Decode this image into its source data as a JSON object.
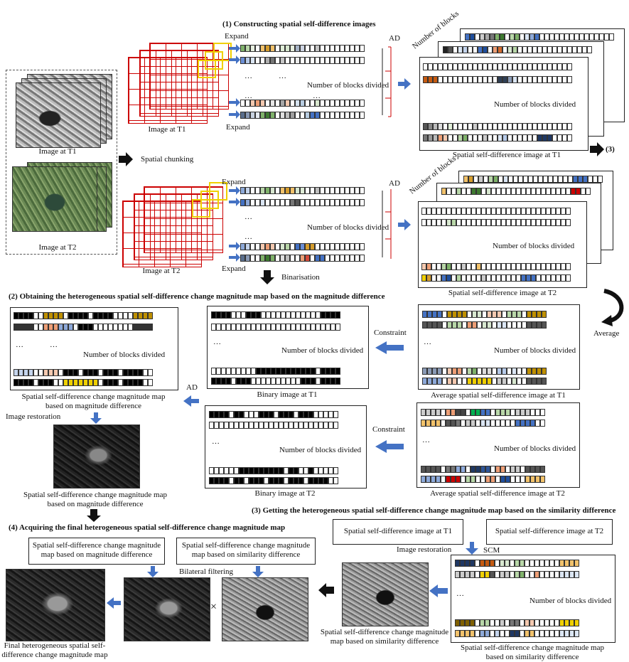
{
  "section1_title": "(1) Constructing spatial self-difference images",
  "section2_title": "(2) Obtaining the heterogeneous spatial self-difference  change magnitude map based on the magnitude difference",
  "section3_title": "(3) Getting the heterogeneous spatial self-difference change magnitude map based on the similarity difference",
  "section4_title": "(4) Acquiring the final heterogeneous spatial self-difference change magnitude map",
  "step3_marker": "(3)",
  "labels": {
    "image_t1": "Image at T1",
    "image_t2": "Image at T2",
    "spatial_chunking": "Spatial chunking",
    "expand": "Expand",
    "ad": "AD",
    "number_of_blocks_divided": "Number of blocks divided",
    "number_of_blocks": "Number of blocks",
    "ellipsis": "…",
    "ssd_t1": "Spatial self-difference image at T1",
    "ssd_t2": "Spatial self-difference image at T2",
    "binarisation": "Binarisation",
    "average": "Average",
    "constraint": "Constraint",
    "binary_t1": "Binary image at T1",
    "binary_t2": "Binary image at T2",
    "avg_ssd_t1": "Average spatial self-difference image at T1",
    "avg_ssd_t2": "Average spatial self-difference image at T2",
    "scm_magnitude_line1": "Spatial self-difference change magnitude map",
    "scm_magnitude_line2": "based on magnitude difference",
    "image_restoration": "Image restoration",
    "scm": "SCM",
    "scm_similarity_line1": "Spatial self-difference change magnitude map",
    "scm_similarity_line2": "based on similarity difference",
    "box_mag_line1": "Spatial self-difference change magnitude",
    "box_mag_line2": "map based on magnitude difference",
    "box_sim_line1": "Spatial self-difference change magnitude",
    "box_sim_line2": "map based on similarity difference",
    "bilateral_filtering": "Bilateral filtering",
    "times": "×",
    "final_line1": "Final heterogeneous spatial self-",
    "final_line2": "difference change magnitude map",
    "sim_result_line1": "Spatial self-difference change magnitude",
    "sim_result_line2": "map based on similarity difference"
  },
  "colors": {
    "arrow_blue": "#4472c4",
    "arrow_black": "#111111",
    "red_grid": "#cc0000",
    "yellow_box": "#f0d000"
  }
}
